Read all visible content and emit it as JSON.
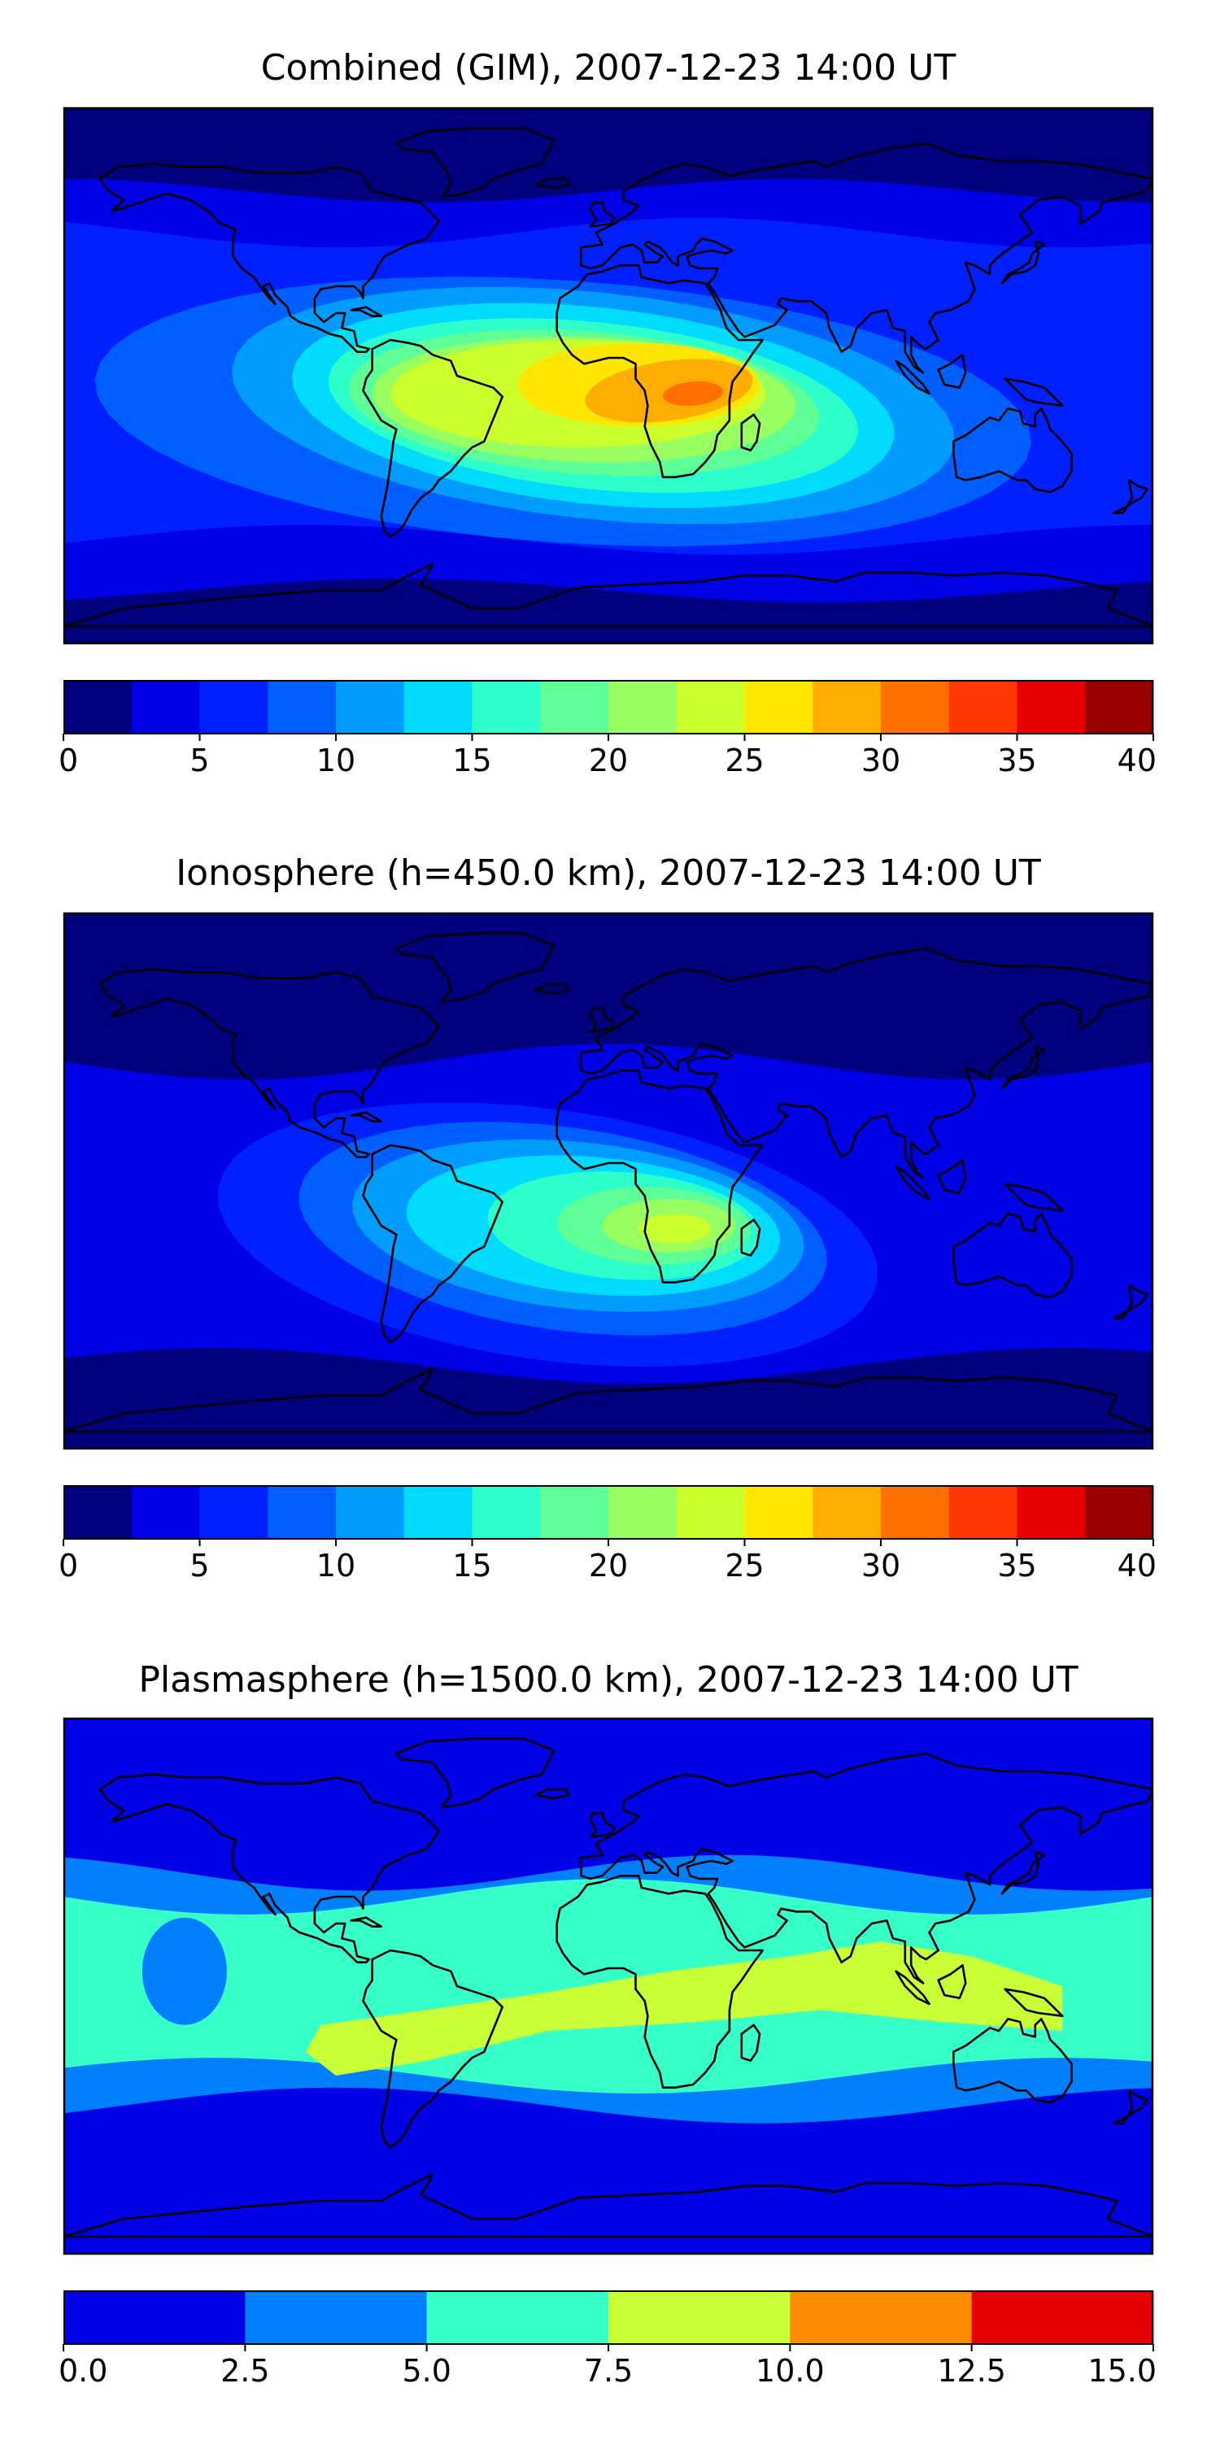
{
  "chart_data": [
    {
      "type": "heatmap",
      "title": "Combined (GIM), 2007-12-23 14:00 UT",
      "colorbar": {
        "ticks": [
          "0",
          "5",
          "10",
          "15",
          "20",
          "25",
          "30",
          "35",
          "40"
        ],
        "range": [
          0,
          40
        ],
        "levels": [
          0,
          2.5,
          5,
          7.5,
          10,
          12.5,
          15,
          17.5,
          20,
          22.5,
          25,
          27.5,
          30,
          32.5,
          35,
          37.5,
          40
        ],
        "colors": [
          "#00007f",
          "#0000e6",
          "#0020ff",
          "#0060ff",
          "#009cff",
          "#00dcfe",
          "#2cffca",
          "#5fff97",
          "#97ff5f",
          "#caff2c",
          "#fee600",
          "#ffad00",
          "#ff7000",
          "#ff3600",
          "#e60000",
          "#990000"
        ]
      },
      "peak_region": "Africa / South Atlantic",
      "peak_value": 31
    },
    {
      "type": "heatmap",
      "title": "Ionosphere  (h=450.0 km), 2007-12-23 14:00 UT",
      "colorbar": {
        "ticks": [
          "0",
          "5",
          "10",
          "15",
          "20",
          "25",
          "30",
          "35",
          "40"
        ],
        "range": [
          0,
          40
        ],
        "levels": [
          0,
          2.5,
          5,
          7.5,
          10,
          12.5,
          15,
          17.5,
          20,
          22.5,
          25,
          27.5,
          30,
          32.5,
          35,
          37.5,
          40
        ],
        "colors": [
          "#00007f",
          "#0000e6",
          "#0020ff",
          "#0060ff",
          "#009cff",
          "#00dcfe",
          "#2cffca",
          "#5fff97",
          "#97ff5f",
          "#caff2c",
          "#fee600",
          "#ffad00",
          "#ff7000",
          "#ff3600",
          "#e60000",
          "#990000"
        ]
      },
      "peak_region": "Southern Africa",
      "peak_value": 24
    },
    {
      "type": "heatmap",
      "title": "Plasmasphere (h=1500.0 km), 2007-12-23 14:00 UT",
      "colorbar": {
        "ticks": [
          "0.0",
          "2.5",
          "5.0",
          "7.5",
          "10.0",
          "12.5",
          "15.0"
        ],
        "range": [
          0,
          15
        ],
        "levels": [
          0,
          2.5,
          5,
          7.5,
          10,
          12.5,
          15
        ],
        "colors": [
          "#0000e6",
          "#007fff",
          "#36ffc8",
          "#c8ff36",
          "#ff8c00",
          "#e60000"
        ]
      },
      "peak_region": "Low-latitude band",
      "peak_value": 8.5
    }
  ]
}
